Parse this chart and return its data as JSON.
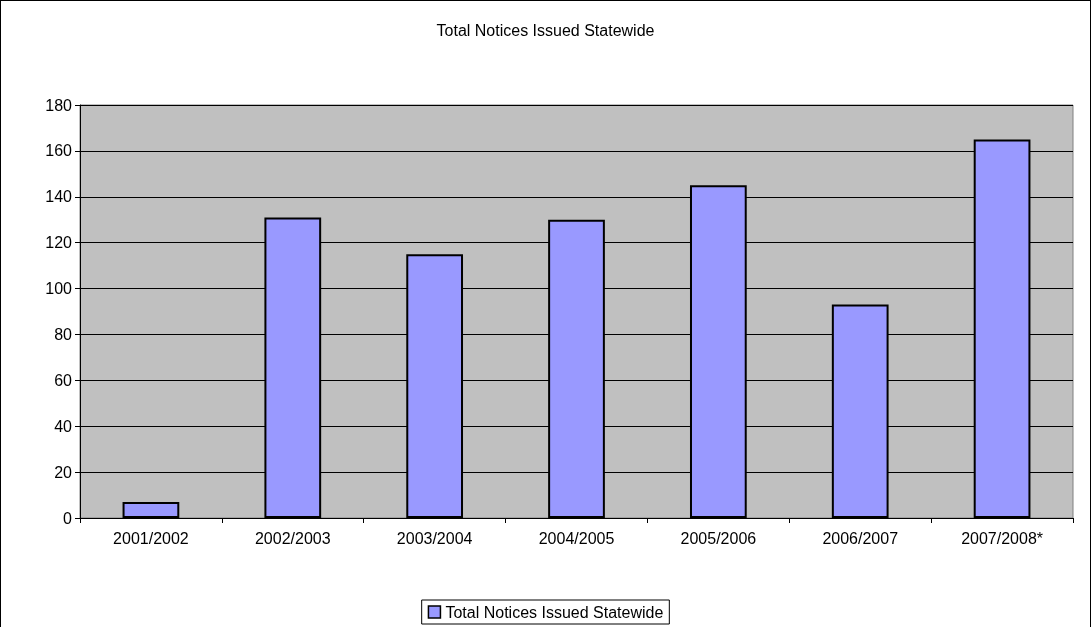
{
  "chart_data": {
    "type": "bar",
    "title": "Total Notices Issued Statewide",
    "categories": [
      "2001/2002",
      "2002/2003",
      "2003/2004",
      "2004/2005",
      "2005/2006",
      "2006/2007",
      "2007/2008*"
    ],
    "series": [
      {
        "name": "Total Notices Issued Statewide",
        "color": "#9999ff",
        "values": [
          7,
          131,
          115,
          130,
          145,
          93,
          165
        ]
      }
    ],
    "ylim": [
      0,
      180
    ],
    "yticks": [
      0,
      20,
      40,
      60,
      80,
      100,
      120,
      140,
      160,
      180
    ],
    "grid": "y",
    "legend": "bottom"
  }
}
